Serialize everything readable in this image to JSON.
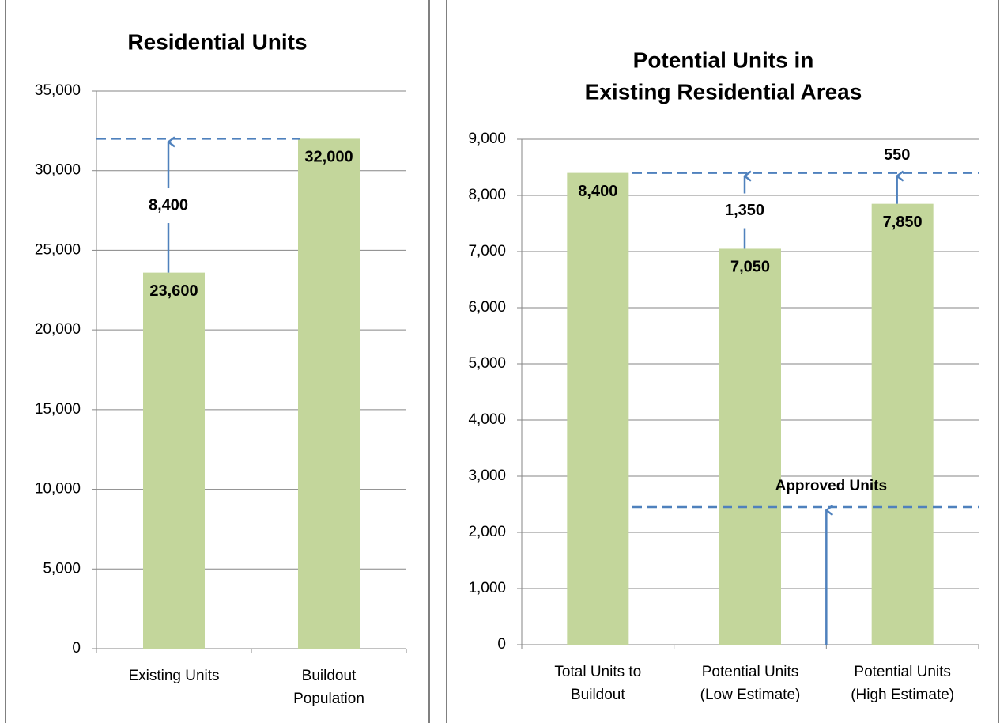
{
  "chart_data": [
    {
      "type": "bar",
      "title": [
        "Residential Units"
      ],
      "categories": [
        [
          "Existing Units"
        ],
        [
          "Buildout",
          "Population"
        ]
      ],
      "values": [
        23600,
        32000
      ],
      "value_labels": [
        "23,600",
        "32,000"
      ],
      "color": "#c3d69b",
      "ylim": [
        0,
        35000
      ],
      "yticks": [
        0,
        {
          "value": 5000,
          "label": "5,000"
        },
        {
          "value": 10000,
          "label": "10,000"
        },
        {
          "value": 15000,
          "label": "15,000"
        },
        {
          "value": 20000,
          "label": "20,000"
        },
        {
          "value": 25000,
          "label": "25,000"
        },
        {
          "value": 30000,
          "label": "30,000"
        },
        {
          "value": 35000,
          "label": "35,000"
        }
      ],
      "grid": true,
      "annotations": [
        {
          "text": "8,400",
          "value": 8400
        },
        null
      ]
    },
    {
      "type": "bar",
      "title": [
        "Potential Units in",
        "Existing Residential Areas"
      ],
      "categories": [
        [
          "Total Units to",
          "Buildout"
        ],
        [
          "Potential Units",
          "(Low Estimate)"
        ],
        [
          "Potential Units",
          "(High Estimate)"
        ]
      ],
      "values": [
        8400,
        7050,
        7850
      ],
      "value_labels": [
        "8,400",
        "7,050",
        "7,850"
      ],
      "color": "#c3d69b",
      "ylim": [
        0,
        9000
      ],
      "yticks": [
        0,
        {
          "value": 1000,
          "label": "1,000"
        },
        {
          "value": 2000,
          "label": "2,000"
        },
        {
          "value": 3000,
          "label": "3,000"
        },
        {
          "value": 4000,
          "label": "4,000"
        },
        {
          "value": 5000,
          "label": "5,000"
        },
        {
          "value": 6000,
          "label": "6,000"
        },
        {
          "value": 7000,
          "label": "7,000"
        },
        {
          "value": 8000,
          "label": "8,000"
        },
        {
          "value": 9000,
          "label": "9,000"
        }
      ],
      "grid": true,
      "annotations": [
        null,
        {
          "text": "1,350",
          "value": 1350
        },
        {
          "text": "550",
          "value": 550
        }
      ],
      "reference": {
        "text": "Approved Units",
        "value": 2450
      }
    }
  ]
}
